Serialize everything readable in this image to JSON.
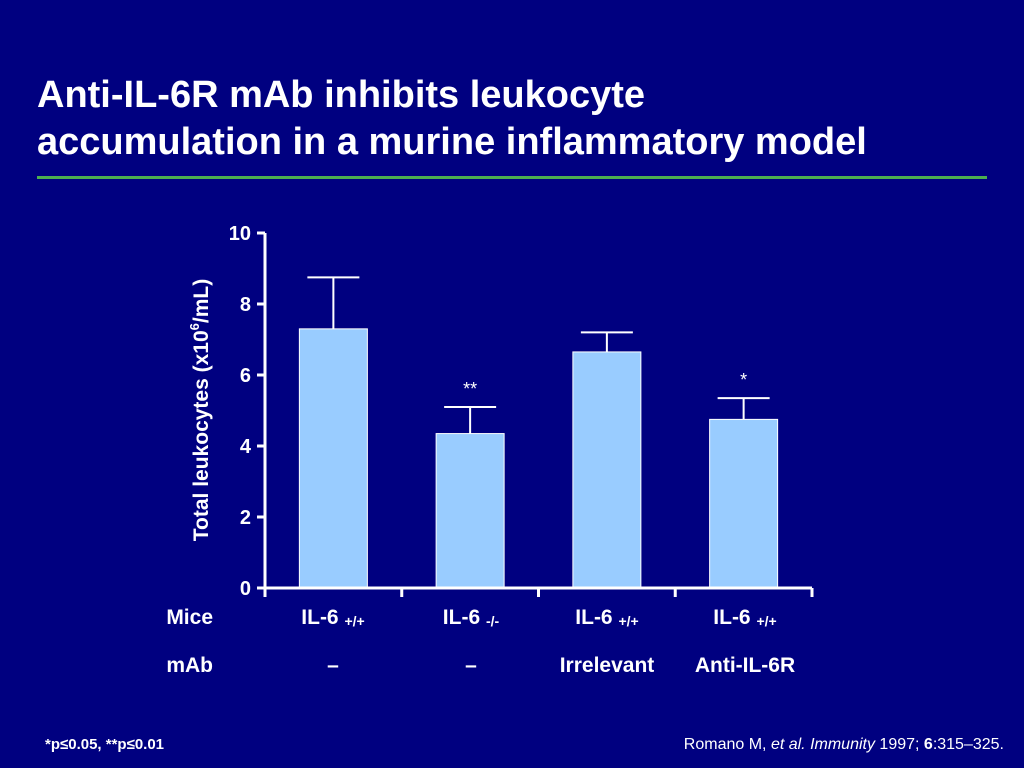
{
  "slide": {
    "title_line1": "Anti-IL-6R mAb inhibits leukocyte",
    "title_line2": "accumulation in a murine inflammatory model",
    "footnote": "*p≤0.05, **p≤0.01",
    "citation": {
      "author": "Romano M, ",
      "etal": "et al.",
      "journal": " Immunity",
      "year": " 1997; ",
      "volume": "6",
      "pages": ":315–325."
    },
    "rule_color": "#4caf50",
    "background_color": "#000080"
  },
  "table": {
    "row1_label": "Mice",
    "row2_label": "mAb",
    "groups": [
      {
        "mice": "IL-6",
        "genotype": "+/+",
        "mab": "–"
      },
      {
        "mice": "IL-6",
        "genotype": "-/-",
        "mab": "–"
      },
      {
        "mice": "IL-6",
        "genotype": "+/+",
        "mab": "Irrelevant"
      },
      {
        "mice": "IL-6",
        "genotype": "+/+",
        "mab": "Anti-IL-6R"
      }
    ]
  },
  "chart_data": {
    "type": "bar",
    "categories": [
      "IL-6 +/+ –",
      "IL-6 -/- –",
      "IL-6 +/+ Irrelevant",
      "IL-6 +/+ Anti-IL-6R"
    ],
    "values": [
      7.3,
      4.35,
      6.65,
      4.75
    ],
    "error_upper": [
      8.75,
      5.1,
      7.2,
      5.35
    ],
    "annotations": [
      "",
      "**",
      "",
      "*"
    ],
    "ylabel": "Total leukocytes (x10",
    "ylabel_sup": "6",
    "ylabel_end": "/mL)",
    "yticks": [
      "0",
      "2",
      "4",
      "6",
      "8",
      "10"
    ],
    "ylim": [
      0,
      10
    ],
    "bar_color": "#99ccff",
    "axis_color": "#ffffff"
  }
}
